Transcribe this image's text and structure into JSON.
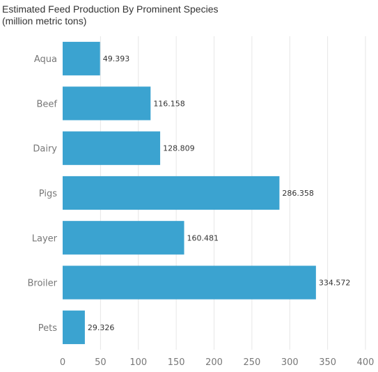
{
  "chart_data": {
    "type": "bar",
    "orientation": "horizontal",
    "title": "Estimated Feed Production By Prominent Species",
    "subtitle": "(million metric tons)",
    "categories": [
      "Aqua",
      "Beef",
      "Dairy",
      "Pigs",
      "Layer",
      "Broiler",
      "Pets"
    ],
    "values": [
      49.393,
      116.158,
      128.809,
      286.358,
      160.481,
      334.572,
      29.326
    ],
    "value_labels": [
      "49.393",
      "116.158",
      "128.809",
      "286.358",
      "160.481",
      "334.572",
      "29.326"
    ],
    "xticks": [
      0,
      50,
      100,
      150,
      200,
      250,
      300,
      350,
      400
    ],
    "xlim": [
      0,
      400
    ],
    "grid": "vertical",
    "bar_color": "#3ba3d0",
    "xlabel": "",
    "ylabel": ""
  }
}
